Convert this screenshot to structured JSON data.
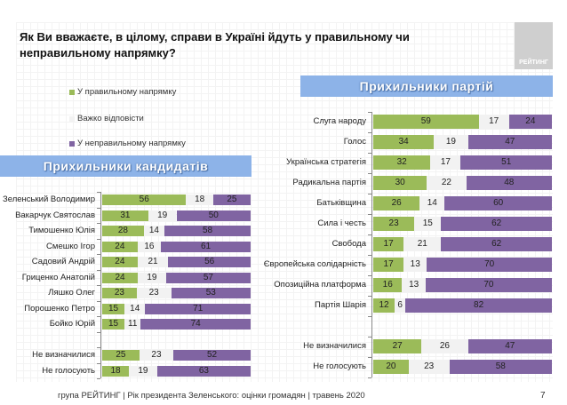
{
  "title": "Як Ви вважаєте, в цілому, справи в Україні йдуть у правильному чи неправильному напрямку?",
  "logo_text": "РЕЙТИНГ",
  "colors": {
    "right": "#9bbb59",
    "hard": "#f2f2f2",
    "wrong": "#8064a2",
    "banner": "#8db3e8"
  },
  "legend": [
    {
      "label": "У правильному напрямку",
      "color": "#9bbb59"
    },
    {
      "label": "Важко відповісти",
      "color": "#f2f2f2"
    },
    {
      "label": "У неправильному напрямку",
      "color": "#8064a2"
    }
  ],
  "chart_data": [
    {
      "type": "bar",
      "stacked": true,
      "orientation": "horizontal",
      "title": "Прихильники кандидатів",
      "series_names": [
        "У правильному напрямку",
        "Важко відповісти",
        "У неправильному напрямку"
      ],
      "categories": [
        "Зеленський Володимир",
        "Вакарчук Святослав",
        "Тимошенко Юлія",
        "Смешко Ігор",
        "Садовий Андрій",
        "Гриценко Анатолій",
        "Ляшко Олег",
        "Порошенко Петро",
        "Бойко Юрій",
        "",
        "Не визначилися",
        "Не голосують"
      ],
      "values": [
        [
          56,
          18,
          25
        ],
        [
          31,
          19,
          50
        ],
        [
          28,
          14,
          58
        ],
        [
          24,
          16,
          61
        ],
        [
          24,
          21,
          56
        ],
        [
          24,
          19,
          57
        ],
        [
          23,
          23,
          53
        ],
        [
          15,
          14,
          71
        ],
        [
          15,
          11,
          74
        ],
        null,
        [
          25,
          23,
          52
        ],
        [
          18,
          19,
          63
        ]
      ]
    },
    {
      "type": "bar",
      "stacked": true,
      "orientation": "horizontal",
      "title": "Прихильники партій",
      "series_names": [
        "У правильному напрямку",
        "Важко відповісти",
        "У неправильному напрямку"
      ],
      "categories": [
        "Слуга народу",
        "Голос",
        "Українська стратегія",
        "Радикальна партія",
        "Батьківщина",
        "Сила і честь",
        "Свобода",
        "Європейська солідарність",
        "Опозиційна платформа",
        "Партія Шарія",
        "",
        "Не визначилися",
        "Не голосують"
      ],
      "values": [
        [
          59,
          17,
          24
        ],
        [
          34,
          19,
          47
        ],
        [
          32,
          17,
          51
        ],
        [
          30,
          22,
          48
        ],
        [
          26,
          14,
          60
        ],
        [
          23,
          15,
          62
        ],
        [
          17,
          21,
          62
        ],
        [
          17,
          13,
          70
        ],
        [
          16,
          13,
          70
        ],
        [
          12,
          6,
          82
        ],
        null,
        [
          27,
          26,
          47
        ],
        [
          20,
          23,
          58
        ]
      ]
    }
  ],
  "footer": "група РЕЙТИНГ |  Рік президента Зеленського: оцінки громадян | травень 2020",
  "page_number": "7"
}
